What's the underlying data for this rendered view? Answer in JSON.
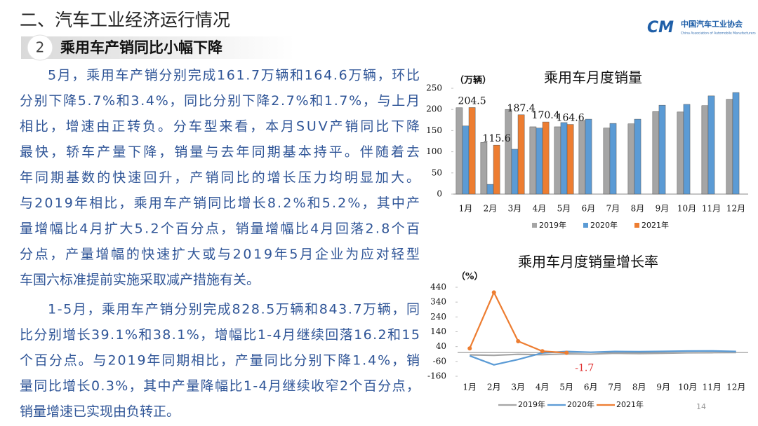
{
  "header": {
    "title": "二、汽车工业经济运行情况",
    "section_number": "2",
    "section_title": "乘用车产销同比小幅下降"
  },
  "logo": {
    "mark": "CM",
    "name": "中国汽车工业协会",
    "english": "China Association of Automobile Manufacturers"
  },
  "body": {
    "paragraphs": [
      [
        "5月，乘用车产销分别完成161.7万辆和164.6万辆，环比",
        "分别下降5.7%和3.4%，同比分别下降2.7%和1.7%，与上月",
        "相比，增速由正转负。分车型来看，本月SUV产销同比下降",
        "最快，轿车产量下降，销量与去年同期基本持平。伴随着去",
        "年同期基数的快速回升，产销同比的增长压力均明显加大。",
        "与2019年相比，乘用车产销同比增长8.2%和5.2%，其中产",
        "量增幅比4月扩大5.2个百分点，销量增幅比4月回落2.8个百",
        "分点，产量增幅的快速扩大或与2019年5月企业为应对轻型",
        "车国六标准提前实施采取减产措施有关。"
      ],
      [
        "1-5月，乘用车产销分别完成828.5万辆和843.7万辆，同",
        "比分别增长39.1%和38.1%，增幅比1-4月继续回落16.2和15",
        "个百分点。与2019年同期相比，产量同比分别下降1.4%，销",
        "量同比增长0.3%，其中产量降幅比1-4月继续收窄2个百分点，",
        "销量增速已实现由负转正。"
      ]
    ]
  },
  "page_number": "14",
  "chart_data": [
    {
      "type": "bar",
      "title": "乘用车月度销量",
      "y_label": "（万辆）",
      "categories": [
        "1月",
        "2月",
        "3月",
        "4月",
        "5月",
        "6月",
        "7月",
        "8月",
        "9月",
        "10月",
        "11月",
        "12月"
      ],
      "ylim": [
        0,
        250
      ],
      "yticks": [
        0,
        50,
        100,
        150,
        200,
        250
      ],
      "legend": "bottom",
      "series": [
        {
          "name": "2019年",
          "color": "#a5a5a5",
          "values": [
            204,
            122,
            200,
            159,
            159,
            174,
            156,
            166,
            195,
            194,
            209,
            224
          ]
        },
        {
          "name": "2020年",
          "color": "#5b9bd5",
          "values": [
            161,
            23,
            106,
            156,
            169,
            177,
            167,
            177,
            210,
            212,
            232,
            240
          ]
        },
        {
          "name": "2021年",
          "color": "#ed7d31",
          "values": [
            204.5,
            115.6,
            187.4,
            170.4,
            164.6,
            null,
            null,
            null,
            null,
            null,
            null,
            null
          ],
          "value_labels": [
            "204.5",
            "115.6",
            "187.4",
            "170.4",
            "164.6",
            null,
            null,
            null,
            null,
            null,
            null,
            null
          ]
        }
      ]
    },
    {
      "type": "line",
      "title": "乘用车月度销量增长率",
      "y_label": "（%）",
      "categories": [
        "1月",
        "2月",
        "3月",
        "4月",
        "5月",
        "6月",
        "7月",
        "8月",
        "9月",
        "10月",
        "11月",
        "12月"
      ],
      "ylim": [
        -160,
        440
      ],
      "yticks": [
        -160,
        -60,
        40,
        140,
        240,
        340,
        440
      ],
      "legend": "bottom",
      "series": [
        {
          "name": "2019年",
          "color": "#a5a5a5",
          "values": [
            -16,
            -19,
            -12,
            -15,
            -9,
            -11,
            -5,
            -7,
            -5,
            -2,
            -1,
            0
          ]
        },
        {
          "name": "2020年",
          "color": "#5b9bd5",
          "values": [
            -22,
            -83,
            -47,
            -3,
            7,
            2,
            7,
            6,
            8,
            10,
            11,
            7
          ]
        },
        {
          "name": "2021年",
          "color": "#ed7d31",
          "values": [
            28,
            405,
            76,
            9,
            -1.7,
            null,
            null,
            null,
            null,
            null,
            null,
            null
          ],
          "value_labels": [
            null,
            null,
            null,
            null,
            "-1.7",
            null,
            null,
            null,
            null,
            null,
            null,
            null
          ]
        }
      ]
    }
  ]
}
